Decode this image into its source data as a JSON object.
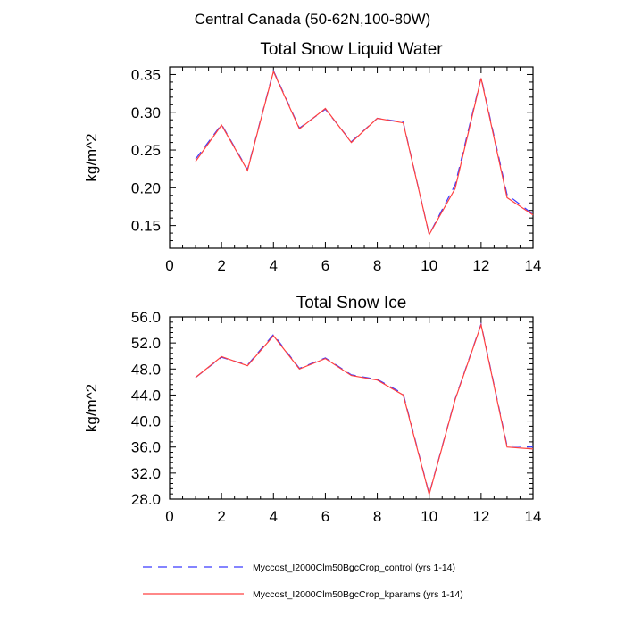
{
  "figure_title": "Central Canada (50-62N,100-80W)",
  "colors": {
    "control": "#3a3aff",
    "kparams": "#ff4040",
    "axis": "#000000"
  },
  "legend": [
    {
      "label": "Myccost_I2000Clm50BgcCrop_control (yrs 1-14)",
      "style": "dashed",
      "color": "#3a3aff"
    },
    {
      "label": "Myccost_I2000Clm50BgcCrop_kparams (yrs 1-14)",
      "style": "solid",
      "color": "#ff4040"
    }
  ],
  "chart_data": [
    {
      "type": "line",
      "title": "Total Snow Liquid Water",
      "xlabel": "",
      "ylabel": "kg/m^2",
      "xlim": [
        0,
        14
      ],
      "ylim": [
        0.12,
        0.36
      ],
      "xticks": [
        0,
        2,
        4,
        6,
        8,
        10,
        12,
        14
      ],
      "xtick_labels": [
        "0",
        "2",
        "4",
        "6",
        "8",
        "10",
        "12",
        "14"
      ],
      "yticks": [
        0.15,
        0.2,
        0.25,
        0.3,
        0.35
      ],
      "ytick_labels": [
        "0.15",
        "0.20",
        "0.25",
        "0.30",
        "0.35"
      ],
      "x": [
        1,
        2,
        3,
        4,
        5,
        6,
        7,
        8,
        9,
        10,
        11,
        12,
        13,
        14
      ],
      "series": [
        {
          "name": "Myccost_I2000Clm50BgcCrop_control (yrs 1-14)",
          "values": [
            0.238,
            0.284,
            0.224,
            0.355,
            0.279,
            0.304,
            0.261,
            0.292,
            0.287,
            0.138,
            0.204,
            0.346,
            0.191,
            0.165
          ]
        },
        {
          "name": "Myccost_I2000Clm50BgcCrop_kparams (yrs 1-14)",
          "values": [
            0.235,
            0.283,
            0.223,
            0.354,
            0.278,
            0.305,
            0.26,
            0.292,
            0.286,
            0.138,
            0.199,
            0.345,
            0.187,
            0.164
          ]
        }
      ]
    },
    {
      "type": "line",
      "title": "Total Snow Ice",
      "xlabel": "",
      "ylabel": "kg/m^2",
      "xlim": [
        0,
        14
      ],
      "ylim": [
        28.0,
        56.0
      ],
      "xticks": [
        0,
        2,
        4,
        6,
        8,
        10,
        12,
        14
      ],
      "xtick_labels": [
        "0",
        "2",
        "4",
        "6",
        "8",
        "10",
        "12",
        "14"
      ],
      "yticks": [
        28,
        32,
        36,
        40,
        44,
        48,
        52,
        56
      ],
      "ytick_labels": [
        "28.0",
        "32.0",
        "36.0",
        "40.0",
        "44.0",
        "48.0",
        "52.0",
        "56.0"
      ],
      "x": [
        1,
        2,
        3,
        4,
        5,
        6,
        7,
        8,
        9,
        10,
        11,
        12,
        13,
        14
      ],
      "series": [
        {
          "name": "Myccost_I2000Clm50BgcCrop_control (yrs 1-14)",
          "values": [
            46.7,
            49.8,
            48.6,
            53.3,
            48.1,
            49.7,
            47.1,
            46.4,
            44.2,
            28.8,
            43.4,
            54.9,
            36.2,
            36.0
          ]
        },
        {
          "name": "Myccost_I2000Clm50BgcCrop_kparams (yrs 1-14)",
          "values": [
            46.7,
            49.9,
            48.5,
            53.1,
            48.0,
            49.6,
            47.0,
            46.3,
            44.0,
            28.7,
            43.3,
            54.8,
            36.0,
            35.7
          ]
        }
      ]
    }
  ]
}
